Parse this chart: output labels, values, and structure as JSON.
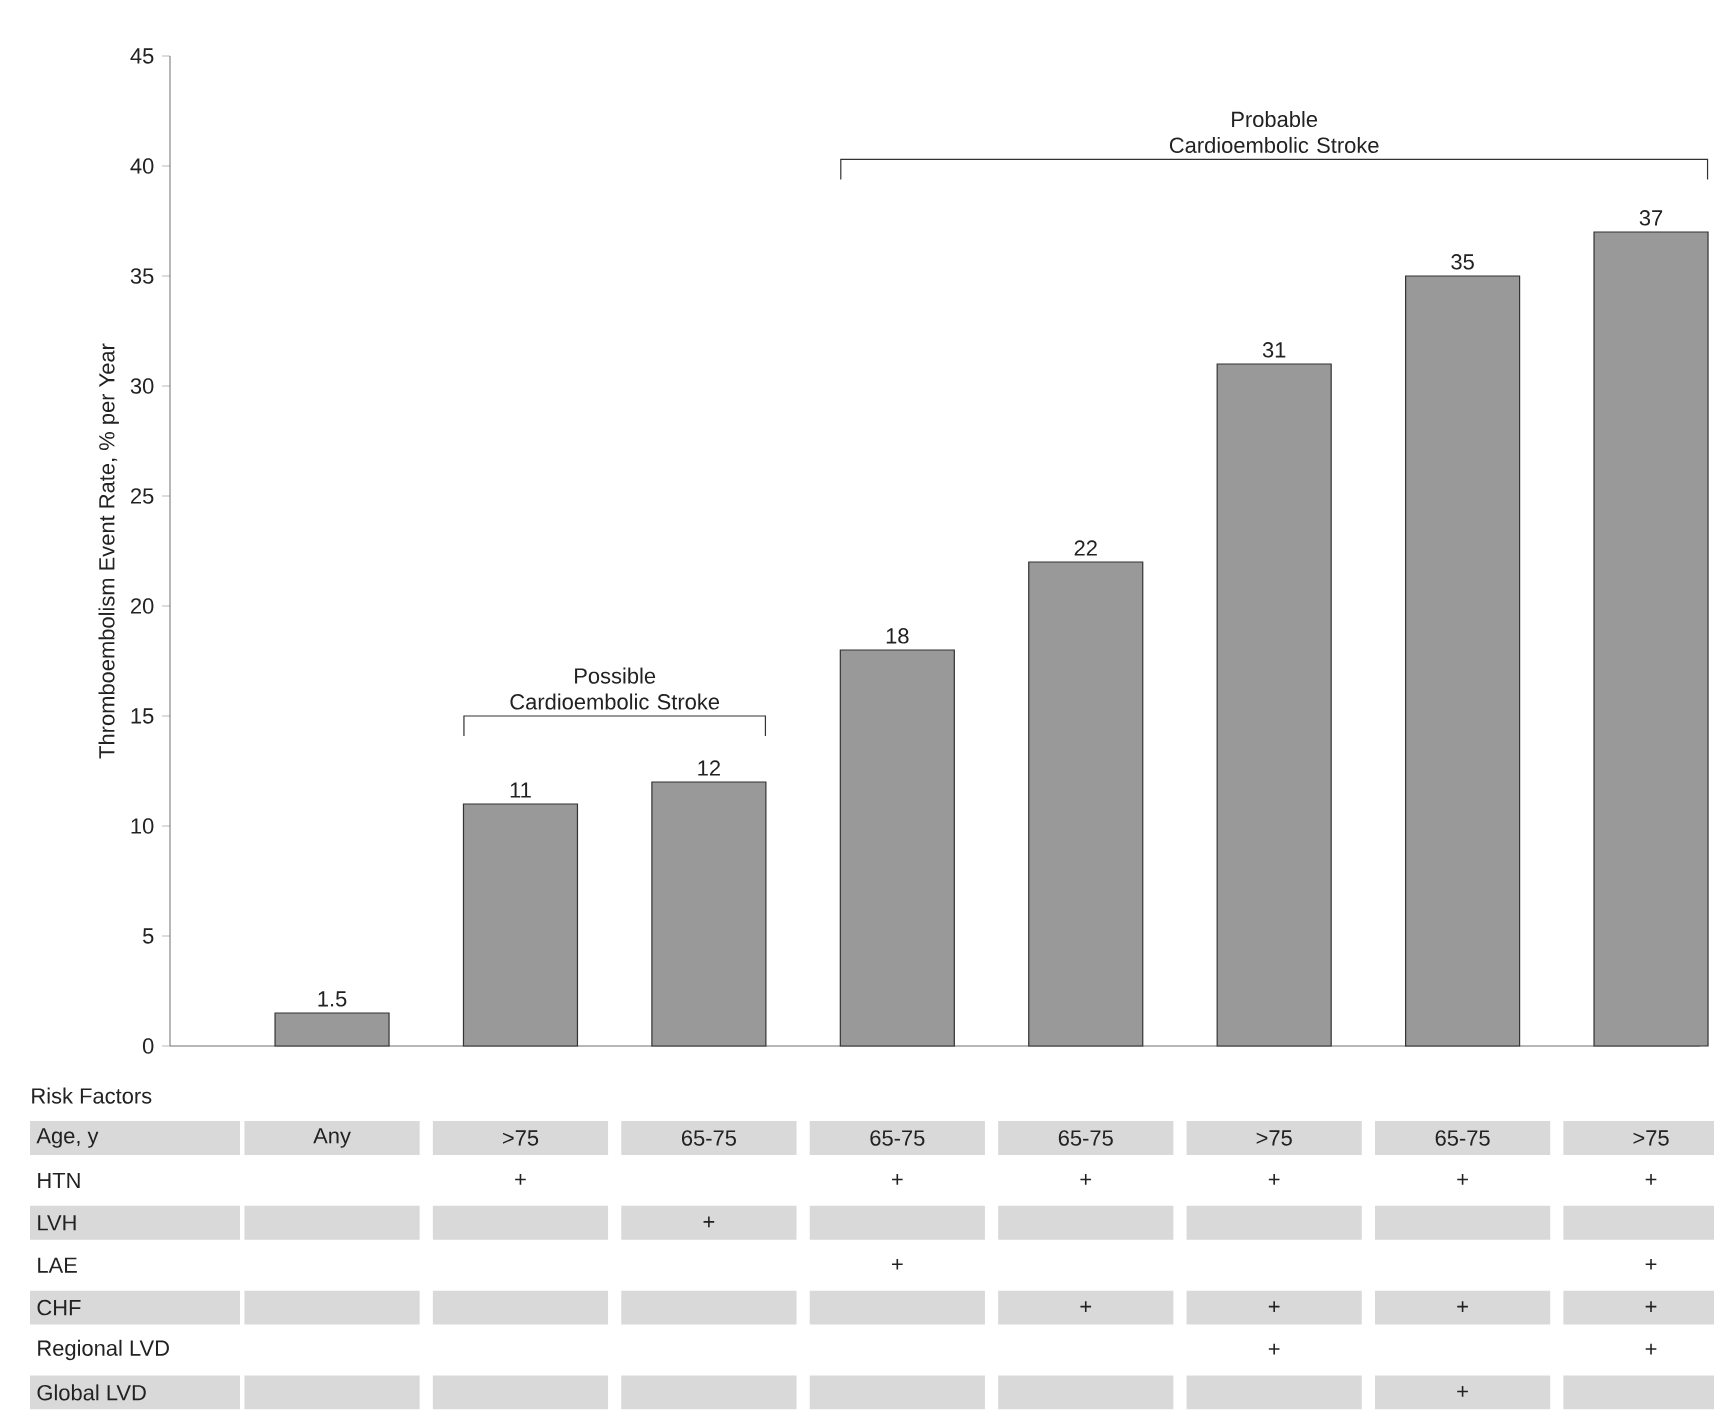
{
  "chart_data": [
    {
      "type": "bar",
      "ylabel": "Thromboembolism Event Rate, % per Year",
      "xlabel": "Age, y",
      "categories": [
        "Any",
        ">75",
        "65-75",
        "65-75",
        "65-75",
        ">75",
        "65-75",
        ">75"
      ],
      "values": [
        1.5,
        11,
        12,
        18,
        22,
        31,
        35,
        37
      ],
      "color": "#999999",
      "data_labels": true,
      "ylim": [
        0,
        45
      ],
      "yticks": [
        0,
        5,
        10,
        15,
        20,
        25,
        30,
        35,
        40,
        45
      ],
      "annotations": [
        "Possible Cardioembolic Stroke",
        "Probable Cardioembolic Stroke"
      ]
    },
    {
      "type": "heatmap",
      "title": "Risk Factors",
      "categories": [
        null,
        null,
        null,
        null,
        null,
        null,
        null,
        null
      ],
      "y_categories": [
        "HTN",
        "LVH",
        "LAE",
        "CHF",
        "Regional LVD",
        "Global LVD"
      ],
      "cells": [
        [
          null,
          null,
          null,
          null,
          null,
          null,
          null,
          null
        ],
        [
          null,
          null,
          null,
          null,
          null,
          null,
          null,
          null
        ],
        [
          null,
          null,
          null,
          null,
          null,
          null,
          null,
          null
        ],
        [
          null,
          null,
          null,
          null,
          null,
          null,
          null,
          null
        ],
        [
          null,
          null,
          null,
          null,
          null,
          null,
          null,
          null
        ],
        [
          null,
          null,
          null,
          null,
          null,
          null,
          null,
          null
        ]
      ],
      "cell_labels": [
        [
          null,
          "+",
          null,
          "+",
          "+",
          "+",
          "+",
          "+"
        ],
        [
          null,
          null,
          "+",
          null,
          null,
          null,
          null,
          null
        ],
        [
          null,
          null,
          null,
          "+",
          null,
          null,
          null,
          "+"
        ],
        [
          null,
          null,
          null,
          null,
          "+",
          "+",
          "+",
          "+"
        ],
        [
          null,
          null,
          null,
          null,
          null,
          "+",
          null,
          "+"
        ],
        [
          null,
          null,
          null,
          null,
          null,
          null,
          "+",
          null
        ]
      ]
    }
  ]
}
